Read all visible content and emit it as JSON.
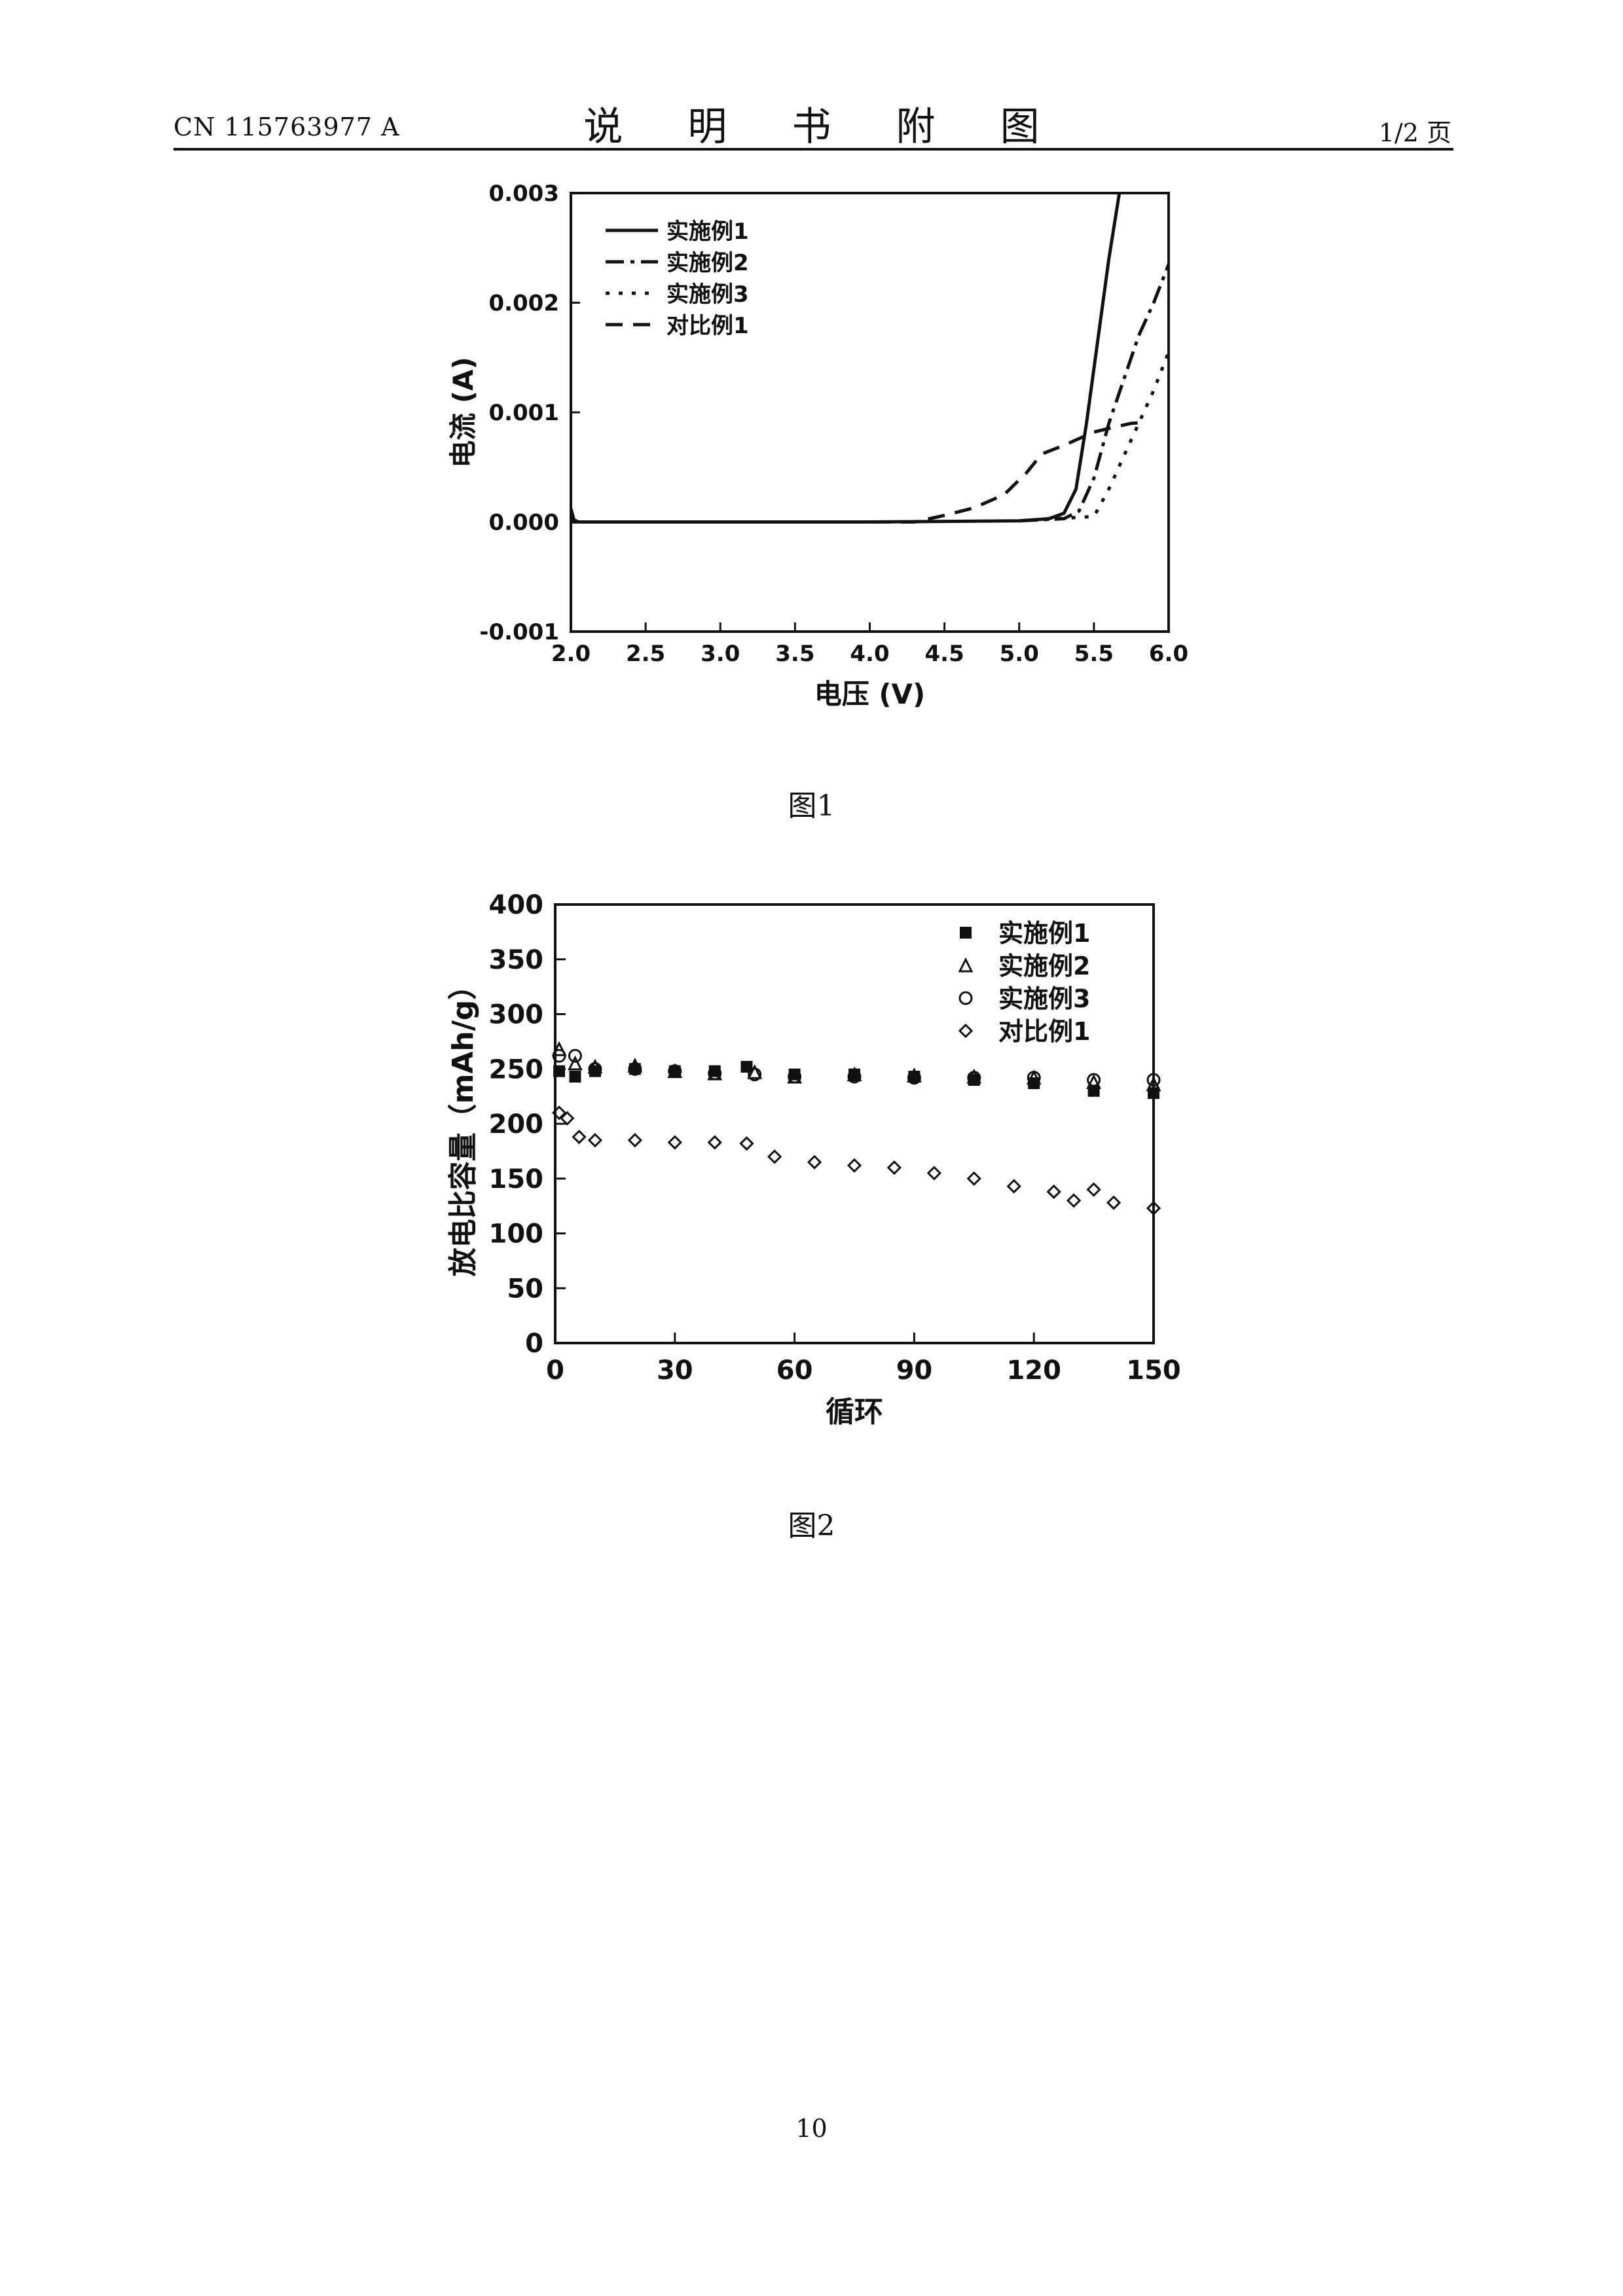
{
  "header": {
    "patent_number": "CN 115763977 A",
    "title": "说 明 书 附 图",
    "page_of": "1/2 页"
  },
  "figures": [
    {
      "caption": "图1"
    },
    {
      "caption": "图2"
    }
  ],
  "page_number": "10",
  "chart_data": [
    {
      "type": "line",
      "title": "",
      "xlabel": "电压 (V)",
      "ylabel": "电流 (A)",
      "xlim": [
        2.0,
        6.0
      ],
      "ylim": [
        -0.001,
        0.003
      ],
      "xticks": [
        "2.0",
        "2.5",
        "3.0",
        "3.5",
        "4.0",
        "4.5",
        "5.0",
        "5.5",
        "6.0"
      ],
      "yticks": [
        "-0.001",
        "0.000",
        "0.001",
        "0.002",
        "0.003"
      ],
      "legend_position": "top-left",
      "series": [
        {
          "name": "实施例1",
          "style": "solid",
          "x": [
            2.0,
            2.02,
            2.05,
            2.1,
            4.0,
            5.0,
            5.2,
            5.3,
            5.38,
            5.45,
            5.5,
            5.55,
            5.6,
            5.67
          ],
          "y": [
            0.00012,
            2e-05,
            0.0,
            0.0,
            0.0,
            1e-05,
            3e-05,
            8e-05,
            0.0003,
            0.0009,
            0.0014,
            0.0019,
            0.0024,
            0.003
          ]
        },
        {
          "name": "实施例2",
          "style": "dashdot",
          "x": [
            5.0,
            5.3,
            5.4,
            5.5,
            5.6,
            5.7,
            5.8,
            5.9,
            6.0
          ],
          "y": [
            1e-05,
            3e-05,
            0.0001,
            0.0004,
            0.0009,
            0.0013,
            0.0017,
            0.002,
            0.00235
          ]
        },
        {
          "name": "实施例3",
          "style": "dotted",
          "x": [
            5.0,
            5.5,
            5.6,
            5.7,
            5.8,
            5.9,
            6.0
          ],
          "y": [
            1e-05,
            5e-05,
            0.0003,
            0.0006,
            0.0009,
            0.0012,
            0.00155
          ]
        },
        {
          "name": "对比例1",
          "style": "dashed",
          "x": [
            2.0,
            4.3,
            4.5,
            4.7,
            4.9,
            5.05,
            5.15,
            5.3,
            5.5,
            5.65,
            5.75,
            5.85
          ],
          "y": [
            0.0,
            0.0,
            6e-05,
            0.00013,
            0.00025,
            0.00045,
            0.00062,
            0.0007,
            0.00082,
            0.00087,
            0.0009,
            0.00091
          ]
        }
      ]
    },
    {
      "type": "scatter",
      "title": "",
      "xlabel": "循环",
      "ylabel": "放电比容量（mAh/g）",
      "xlim": [
        0,
        150
      ],
      "ylim": [
        0,
        400
      ],
      "xticks": [
        "0",
        "30",
        "60",
        "90",
        "120",
        "150"
      ],
      "yticks": [
        "0",
        "50",
        "100",
        "150",
        "200",
        "250",
        "300",
        "350",
        "400"
      ],
      "legend_position": "top-right",
      "series": [
        {
          "name": "实施例1",
          "marker": "square-filled",
          "x": [
            1,
            5,
            10,
            20,
            30,
            40,
            48,
            60,
            75,
            90,
            105,
            120,
            135,
            150
          ],
          "y": [
            248,
            243,
            248,
            250,
            248,
            248,
            252,
            245,
            245,
            243,
            240,
            237,
            230,
            228
          ]
        },
        {
          "name": "实施例2",
          "marker": "triangle-open",
          "x": [
            1,
            5,
            10,
            20,
            30,
            40,
            50,
            60,
            75,
            90,
            105,
            120,
            135,
            150
          ],
          "y": [
            268,
            255,
            252,
            253,
            248,
            246,
            247,
            243,
            245,
            244,
            243,
            242,
            238,
            236
          ]
        },
        {
          "name": "实施例3",
          "marker": "circle-open",
          "x": [
            1,
            5,
            10,
            20,
            30,
            40,
            50,
            60,
            75,
            90,
            105,
            120,
            135,
            150
          ],
          "y": [
            262,
            262,
            250,
            250,
            248,
            246,
            245,
            243,
            243,
            242,
            242,
            242,
            240,
            240
          ]
        },
        {
          "name": "对比例1",
          "marker": "diamond-open",
          "x": [
            1,
            3,
            6,
            10,
            20,
            30,
            40,
            48,
            55,
            65,
            75,
            85,
            95,
            105,
            115,
            125,
            130,
            135,
            140,
            150
          ],
          "y": [
            210,
            205,
            188,
            185,
            185,
            183,
            183,
            182,
            170,
            165,
            162,
            160,
            155,
            150,
            143,
            138,
            130,
            140,
            128,
            123
          ]
        }
      ]
    }
  ]
}
